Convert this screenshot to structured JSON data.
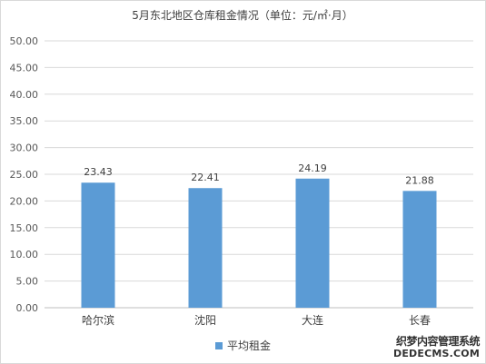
{
  "chart_data": {
    "type": "bar",
    "title": "5月东北地区仓库租金情况（单位：元/㎡·月）",
    "categories": [
      "哈尔滨",
      "沈阳",
      "大连",
      "长春"
    ],
    "series": [
      {
        "name": "平均租金",
        "values": [
          23.43,
          22.41,
          24.19,
          21.88
        ],
        "color": "#5b9bd5"
      }
    ],
    "value_labels": [
      "23.43",
      "22.41",
      "24.19",
      "21.88"
    ],
    "y_ticks": [
      "0.00",
      "5.00",
      "10.00",
      "15.00",
      "20.00",
      "25.00",
      "30.00",
      "35.00",
      "40.00",
      "45.00",
      "50.00"
    ],
    "ylim": [
      0,
      50
    ],
    "grid": true,
    "legend_position": "bottom",
    "xlabel": "",
    "ylabel": ""
  },
  "watermark": {
    "line1": "织梦内容管理系统",
    "line2": "DEDECMS.COM"
  }
}
